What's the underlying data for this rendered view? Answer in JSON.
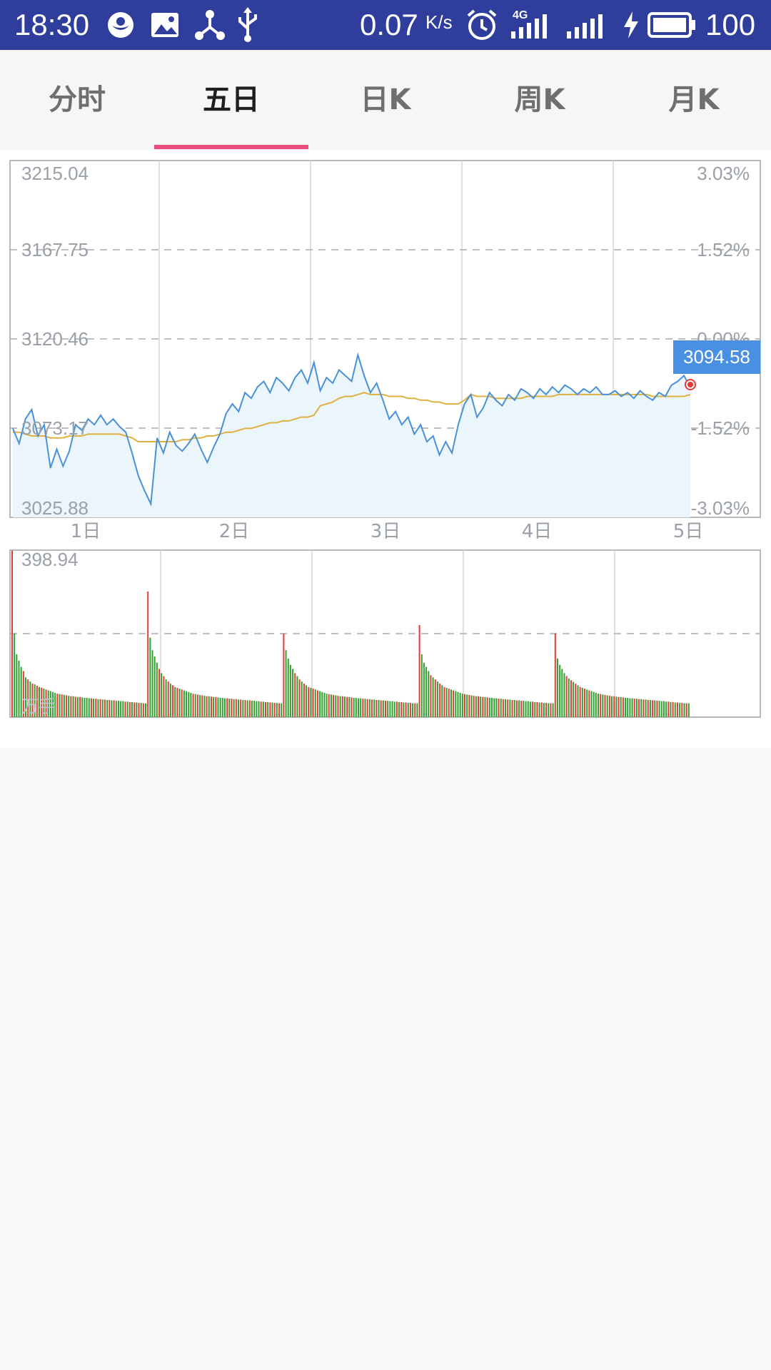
{
  "status_bar": {
    "time": "18:30",
    "speed": "0.07",
    "speed_unit": "K/s",
    "network": "4G",
    "battery": "100",
    "icons": [
      "app-icon",
      "image-icon",
      "share-icon",
      "usb-icon",
      "alarm-icon",
      "signal-icon",
      "signal-icon",
      "charging-icon",
      "battery-icon"
    ]
  },
  "tabs": [
    {
      "label": "分时",
      "active": false
    },
    {
      "label": "五日",
      "active": true
    },
    {
      "label": "日K",
      "active": false
    },
    {
      "label": "周K",
      "active": false
    },
    {
      "label": "月K",
      "active": false
    }
  ],
  "colors": {
    "status_bar_bg": "#2f3d9c",
    "tab_indicator": "#e94b7a",
    "price_line": "#4a90d9",
    "avg_line": "#e0b040",
    "area_fill": "#eaf6fb",
    "up": "#e53935",
    "down": "#2ea02e",
    "price_tag_bg": "#4a90e2"
  },
  "chart_data": {
    "type": "line",
    "days": [
      "1日",
      "2日",
      "3日",
      "4日",
      "5日"
    ],
    "price_axis": {
      "left_labels": [
        "3215.04",
        "3167.75",
        "3120.46",
        "3073.17",
        "3025.88"
      ],
      "right_labels": [
        "3.03%",
        "1.52%",
        "0.00%",
        "-1.52%",
        "-3.03%"
      ],
      "ylim": [
        3025.88,
        3215.04
      ],
      "reference_close": 3120.46
    },
    "current_price": "3094.58",
    "series": [
      {
        "key": "price",
        "values": [
          3073,
          3065,
          3078,
          3083,
          3069,
          3075,
          3052,
          3062,
          3053,
          3061,
          3075,
          3072,
          3078,
          3075,
          3080,
          3075,
          3078,
          3074,
          3071,
          3060,
          3048,
          3040,
          3033,
          3068,
          3060,
          3071,
          3064,
          3061,
          3065,
          3070,
          3062,
          3055,
          3063,
          3070,
          3081,
          3086,
          3082,
          3092,
          3089,
          3095,
          3098,
          3092,
          3100,
          3097,
          3093,
          3100,
          3104,
          3097,
          3108,
          3093,
          3100,
          3097,
          3104,
          3101,
          3098,
          3112,
          3101,
          3092,
          3097,
          3088,
          3078,
          3082,
          3075,
          3079,
          3070,
          3075,
          3066,
          3069,
          3059,
          3066,
          3060,
          3075,
          3086,
          3091,
          3079,
          3084,
          3092,
          3088,
          3085,
          3091,
          3088,
          3094,
          3092,
          3089,
          3094,
          3091,
          3095,
          3092,
          3096,
          3094,
          3091,
          3094,
          3092,
          3095,
          3091,
          3091,
          3093,
          3090,
          3092,
          3089,
          3093,
          3090,
          3088,
          3092,
          3090,
          3096,
          3098,
          3101,
          3094.58
        ]
      },
      {
        "key": "average",
        "values": [
          3071,
          3071,
          3070,
          3069,
          3069,
          3069,
          3068,
          3068,
          3068,
          3069,
          3069,
          3069,
          3070,
          3070,
          3070,
          3070,
          3070,
          3070,
          3069,
          3068,
          3066,
          3066,
          3066,
          3066,
          3066,
          3066,
          3066,
          3067,
          3067,
          3068,
          3068,
          3069,
          3069,
          3070,
          3071,
          3071,
          3072,
          3073,
          3073,
          3074,
          3075,
          3076,
          3076,
          3077,
          3077,
          3078,
          3079,
          3079,
          3080,
          3085,
          3086,
          3087,
          3089,
          3090,
          3090,
          3091,
          3092,
          3091,
          3091,
          3091,
          3090,
          3090,
          3090,
          3089,
          3089,
          3088,
          3088,
          3087,
          3087,
          3086,
          3086,
          3086,
          3088,
          3091,
          3090,
          3090,
          3090,
          3089,
          3089,
          3089,
          3089,
          3089,
          3090,
          3090,
          3090,
          3090,
          3090,
          3091,
          3091,
          3091,
          3091,
          3091,
          3091,
          3091,
          3091,
          3091,
          3091,
          3091,
          3091,
          3091,
          3091,
          3091,
          3090,
          3090,
          3090,
          3090,
          3090,
          3090,
          3091
        ]
      }
    ],
    "volume": {
      "ymax_label": "398.94",
      "unit": "万手",
      "ylim": [
        0,
        398.94
      ],
      "values": [
        398,
        200,
        150,
        135,
        120,
        110,
        95,
        90,
        85,
        80,
        78,
        75,
        72,
        70,
        68,
        66,
        64,
        62,
        60,
        58,
        56,
        55,
        54,
        53,
        52,
        51,
        50,
        50,
        49,
        48,
        48,
        47,
        46,
        46,
        45,
        45,
        44,
        44,
        43,
        43,
        42,
        42,
        41,
        41,
        40,
        40,
        39,
        39,
        38,
        38,
        37,
        37,
        36,
        36,
        35,
        35,
        34,
        34,
        33,
        33,
        300,
        190,
        160,
        145,
        130,
        115,
        105,
        98,
        90,
        85,
        80,
        76,
        72,
        70,
        68,
        66,
        64,
        62,
        60,
        58,
        56,
        55,
        54,
        53,
        52,
        51,
        50,
        50,
        49,
        48,
        48,
        47,
        46,
        46,
        45,
        45,
        44,
        44,
        43,
        43,
        42,
        42,
        41,
        41,
        40,
        40,
        39,
        39,
        38,
        38,
        37,
        37,
        36,
        36,
        35,
        35,
        34,
        34,
        33,
        33,
        200,
        160,
        140,
        125,
        115,
        105,
        98,
        90,
        85,
        80,
        76,
        72,
        70,
        68,
        66,
        64,
        62,
        60,
        58,
        56,
        55,
        54,
        53,
        52,
        51,
        50,
        50,
        49,
        48,
        48,
        47,
        46,
        46,
        45,
        45,
        44,
        44,
        43,
        43,
        42,
        42,
        41,
        41,
        40,
        40,
        39,
        39,
        38,
        38,
        37,
        37,
        36,
        36,
        35,
        35,
        34,
        34,
        33,
        33,
        33,
        220,
        150,
        130,
        120,
        110,
        100,
        95,
        90,
        85,
        80,
        76,
        72,
        70,
        68,
        66,
        64,
        62,
        60,
        58,
        56,
        55,
        54,
        53,
        52,
        51,
        50,
        50,
        49,
        48,
        48,
        47,
        46,
        46,
        45,
        45,
        44,
        44,
        43,
        43,
        42,
        42,
        41,
        41,
        40,
        40,
        39,
        39,
        38,
        38,
        37,
        37,
        36,
        36,
        35,
        35,
        34,
        34,
        33,
        33,
        33,
        200,
        140,
        125,
        115,
        105,
        98,
        92,
        88,
        84,
        80,
        76,
        72,
        70,
        68,
        66,
        64,
        62,
        60,
        58,
        56,
        55,
        54,
        53,
        52,
        51,
        50,
        50,
        49,
        48,
        48,
        47,
        46,
        46,
        45,
        45,
        44,
        44,
        43,
        43,
        42,
        42,
        41,
        41,
        40,
        40,
        39,
        39,
        38,
        38,
        37,
        37,
        36,
        36,
        35,
        35,
        34,
        34,
        33,
        33,
        33
      ]
    }
  }
}
